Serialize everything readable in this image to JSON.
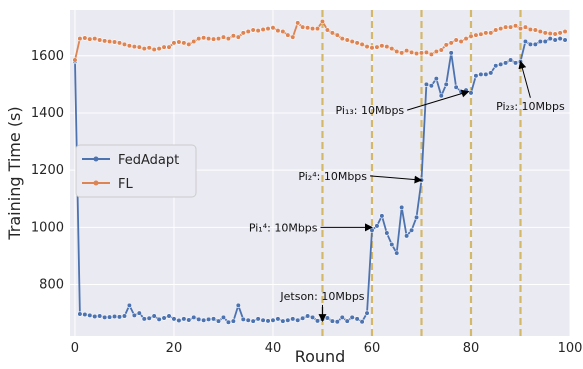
{
  "chart_data": {
    "type": "line",
    "title": "",
    "xlabel": "Round",
    "ylabel": "Training Time (s)",
    "xlim": [
      -1,
      100
    ],
    "ylim": [
      620,
      1760
    ],
    "xticks": [
      0,
      20,
      40,
      60,
      80,
      100
    ],
    "yticks": [
      800,
      1000,
      1200,
      1400,
      1600
    ],
    "grid": true,
    "legend_position": "center-left",
    "series": [
      {
        "name": "FedAdapt",
        "color": "#4c72b0",
        "x": [
          0,
          1,
          2,
          3,
          4,
          5,
          6,
          7,
          8,
          9,
          10,
          11,
          12,
          13,
          14,
          15,
          16,
          17,
          18,
          19,
          20,
          21,
          22,
          23,
          24,
          25,
          26,
          27,
          28,
          29,
          30,
          31,
          32,
          33,
          34,
          35,
          36,
          37,
          38,
          39,
          40,
          41,
          42,
          43,
          44,
          45,
          46,
          47,
          48,
          49,
          50,
          51,
          52,
          53,
          54,
          55,
          56,
          57,
          58,
          59,
          60,
          61,
          62,
          63,
          64,
          65,
          66,
          67,
          68,
          69,
          70,
          71,
          72,
          73,
          74,
          75,
          76,
          77,
          78,
          79,
          80,
          81,
          82,
          83,
          84,
          85,
          86,
          87,
          88,
          89,
          90,
          91,
          92,
          93,
          94,
          95,
          96,
          97,
          98,
          99
        ],
        "values": [
          1580,
          697,
          695,
          692,
          688,
          690,
          685,
          686,
          688,
          687,
          690,
          727,
          692,
          700,
          680,
          682,
          690,
          678,
          683,
          690,
          680,
          674,
          680,
          676,
          685,
          678,
          675,
          678,
          680,
          672,
          685,
          668,
          672,
          727,
          678,
          675,
          672,
          680,
          675,
          673,
          675,
          680,
          672,
          675,
          680,
          675,
          682,
          690,
          685,
          673,
          678,
          683,
          672,
          670,
          685,
          672,
          685,
          680,
          670,
          700,
          990,
          1005,
          1040,
          980,
          940,
          910,
          1070,
          970,
          990,
          1035,
          1165,
          1500,
          1495,
          1520,
          1460,
          1500,
          1610,
          1490,
          1475,
          1480,
          1470,
          1530,
          1535,
          1535,
          1540,
          1565,
          1570,
          1575,
          1585,
          1575,
          1580,
          1650,
          1640,
          1640,
          1650,
          1650,
          1660,
          1655,
          1660,
          1655
        ]
      },
      {
        "name": "FL",
        "color": "#dd8452",
        "x": [
          0,
          1,
          2,
          3,
          4,
          5,
          6,
          7,
          8,
          9,
          10,
          11,
          12,
          13,
          14,
          15,
          16,
          17,
          18,
          19,
          20,
          21,
          22,
          23,
          24,
          25,
          26,
          27,
          28,
          29,
          30,
          31,
          32,
          33,
          34,
          35,
          36,
          37,
          38,
          39,
          40,
          41,
          42,
          43,
          44,
          45,
          46,
          47,
          48,
          49,
          50,
          51,
          52,
          53,
          54,
          55,
          56,
          57,
          58,
          59,
          60,
          61,
          62,
          63,
          64,
          65,
          66,
          67,
          68,
          69,
          70,
          71,
          72,
          73,
          74,
          75,
          76,
          77,
          78,
          79,
          80,
          81,
          82,
          83,
          84,
          85,
          86,
          87,
          88,
          89,
          90,
          91,
          92,
          93,
          94,
          95,
          96,
          97,
          98,
          99
        ],
        "values": [
          1585,
          1660,
          1662,
          1658,
          1660,
          1655,
          1652,
          1650,
          1648,
          1645,
          1640,
          1635,
          1632,
          1630,
          1625,
          1628,
          1622,
          1625,
          1630,
          1630,
          1645,
          1648,
          1645,
          1640,
          1650,
          1660,
          1663,
          1660,
          1658,
          1660,
          1665,
          1660,
          1670,
          1665,
          1680,
          1685,
          1690,
          1688,
          1692,
          1695,
          1698,
          1688,
          1685,
          1672,
          1665,
          1715,
          1700,
          1698,
          1695,
          1695,
          1720,
          1690,
          1680,
          1672,
          1660,
          1655,
          1650,
          1645,
          1640,
          1632,
          1628,
          1630,
          1635,
          1632,
          1625,
          1615,
          1610,
          1618,
          1612,
          1608,
          1610,
          1612,
          1605,
          1615,
          1620,
          1638,
          1645,
          1655,
          1650,
          1660,
          1668,
          1672,
          1675,
          1680,
          1680,
          1690,
          1695,
          1700,
          1700,
          1705,
          1695,
          1700,
          1692,
          1690,
          1685,
          1680,
          1678,
          1676,
          1680,
          1685
        ]
      }
    ],
    "vlines": [
      50,
      60,
      70,
      80,
      90
    ],
    "annotations": [
      {
        "label": "Jetson: 10Mbps",
        "x": 50,
        "y": 672,
        "text_x": 50,
        "text_y": 760,
        "anchor": "middle"
      },
      {
        "label": "Pi₁⁴: 10Mbps",
        "x": 60,
        "y": 1000,
        "text_x": 49,
        "text_y": 1000,
        "anchor": "end"
      },
      {
        "label": "Pi₂⁴: 10Mbps",
        "x": 70,
        "y": 1165,
        "text_x": 59,
        "text_y": 1180,
        "anchor": "end"
      },
      {
        "label": "Pi₁₃: 10Mbps",
        "x": 79.5,
        "y": 1475,
        "text_x": 66.5,
        "text_y": 1410,
        "anchor": "end"
      },
      {
        "label": "Pi₂₃: 10Mbps",
        "x": 90,
        "y": 1580,
        "text_x": 92,
        "text_y": 1425,
        "anchor": "middle"
      }
    ]
  }
}
